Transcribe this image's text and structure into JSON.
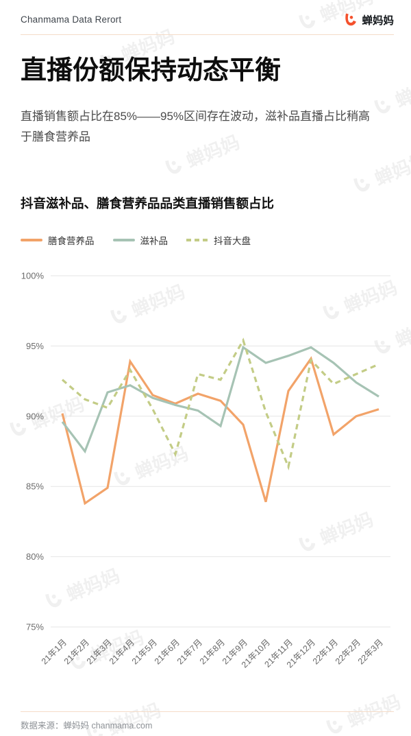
{
  "header": {
    "title": "Chanmama Data Rerort",
    "logo_text": "蝉妈妈"
  },
  "report": {
    "title": "直播份额保持动态平衡",
    "subtitle": "直播销售额占比在85%——95%区间存在波动，滋补品直播占比稍高于膳食营养品"
  },
  "chart": {
    "title": "抖音滋补品、膳食营养品品类直播销售额占比"
  },
  "chart_data": {
    "type": "line",
    "title": "抖音滋补品、膳食营养品品类直播销售额占比",
    "categories": [
      "21年1月",
      "21年2月",
      "21年3月",
      "21年4月",
      "21年5月",
      "21年6月",
      "21年7月",
      "21年8月",
      "21年9月",
      "21年10月",
      "21年11月",
      "21年12月",
      "22年1月",
      "22年2月",
      "22年3月"
    ],
    "series": [
      {
        "key": "dietary-nutrition",
        "name": "膳食营养品",
        "color": "#F2A369",
        "dashed": false,
        "values": [
          90.2,
          83.8,
          84.9,
          93.9,
          91.5,
          90.9,
          91.6,
          91.1,
          89.4,
          83.9,
          91.8,
          94.1,
          88.7,
          90.0,
          90.5
        ]
      },
      {
        "key": "tonic",
        "name": "滋补品",
        "color": "#A6C3B4",
        "dashed": false,
        "values": [
          89.6,
          87.5,
          91.7,
          92.2,
          91.3,
          90.8,
          90.4,
          89.3,
          94.9,
          93.8,
          94.3,
          94.9,
          93.8,
          92.4,
          91.4
        ]
      },
      {
        "key": "douyin-overall",
        "name": "抖音大盘",
        "color": "#C3CC86",
        "dashed": true,
        "values": [
          92.6,
          91.2,
          90.6,
          93.3,
          90.5,
          87.3,
          93.0,
          92.6,
          95.4,
          90.3,
          86.4,
          94.0,
          92.3,
          93.0,
          93.7
        ]
      }
    ],
    "xlabel": "",
    "ylabel": "",
    "ylim": [
      75,
      100
    ],
    "y_ticks": [
      100,
      95,
      90,
      85,
      80,
      75
    ],
    "y_tick_suffix": "%",
    "grid": "horizontal",
    "legend_position": "top-left"
  },
  "footer": {
    "source": "数据来源：蝉妈妈 chanmama.com"
  },
  "watermark": {
    "text": "蝉妈妈"
  },
  "colors": {
    "accent": "#F4512D",
    "divider": "#F5DCC8",
    "gridline": "#E5E5E5",
    "tick_text": "#6B6B6B"
  }
}
